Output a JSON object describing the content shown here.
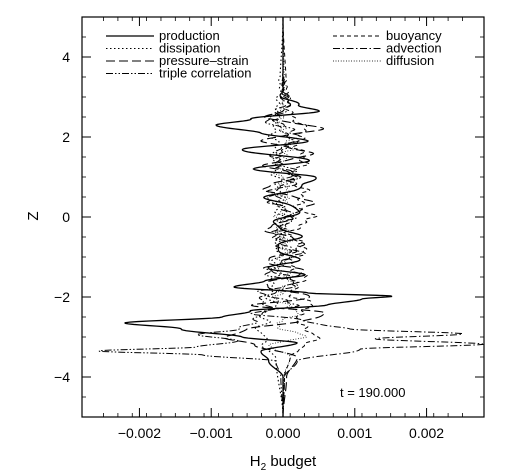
{
  "chart_data": {
    "type": "line",
    "xlabel": "H",
    "xlabel_sub": "2",
    "xlabel_rest": " budget",
    "ylabel": "Z",
    "xlim": [
      -0.0028,
      0.0028
    ],
    "ylim": [
      -5,
      5
    ],
    "x_ticks": [
      -0.002,
      -0.001,
      0.0,
      0.001,
      0.002
    ],
    "x_tick_labels": [
      "−0.002",
      "−0.001",
      "0.000",
      "0.001",
      "0.002"
    ],
    "y_ticks": [
      -4,
      -2,
      0,
      2,
      4
    ],
    "y_tick_labels": [
      "−4",
      "−2",
      "0",
      "2",
      "4"
    ],
    "annotation": "t = 190.000",
    "legend_placement": "top, inside plot (two columns)",
    "grid": false,
    "series": [
      {
        "name": "production",
        "style": "solid",
        "profile": [
          [
            -5,
            0
          ],
          [
            -4,
            0.0
          ],
          [
            -3.6,
            -0.0002
          ],
          [
            -3.35,
            -0.0003
          ],
          [
            -3.15,
            0.0002
          ],
          [
            -3.0,
            -0.0006
          ],
          [
            -2.8,
            -0.0014
          ],
          [
            -2.65,
            -0.0022
          ],
          [
            -2.5,
            -0.0009
          ],
          [
            -2.35,
            -0.0004
          ],
          [
            -2.2,
            0.0006
          ],
          [
            -2.05,
            0.0011
          ],
          [
            -1.98,
            0.0015
          ],
          [
            -1.9,
            0.0003
          ],
          [
            -1.75,
            -0.0006
          ],
          [
            -1.6,
            -0.0003
          ],
          [
            -1.45,
            0.0003
          ],
          [
            -1.3,
            -0.0002
          ],
          [
            -1.1,
            0.0002
          ],
          [
            -0.8,
            -0.0001
          ],
          [
            -0.5,
            0.0002
          ],
          [
            -0.2,
            -0.0001
          ],
          [
            0.2,
            0.0002
          ],
          [
            0.5,
            -0.0002
          ],
          [
            0.8,
            0.0003
          ],
          [
            1.0,
            0.0005
          ],
          [
            1.2,
            -0.0005
          ],
          [
            1.4,
            0.0004
          ],
          [
            1.7,
            -0.0006
          ],
          [
            1.9,
            0.0004
          ],
          [
            2.1,
            -0.0003
          ],
          [
            2.3,
            -0.001
          ],
          [
            2.45,
            -0.0004
          ],
          [
            2.65,
            0.0005
          ],
          [
            2.8,
            0.0002
          ],
          [
            3.0,
            0.0
          ],
          [
            5,
            0
          ]
        ]
      },
      {
        "name": "dissipation",
        "style": "dotted",
        "profile": [
          [
            -5,
            0
          ],
          [
            -3.5,
            -0.0001
          ],
          [
            -3.2,
            -0.0003
          ],
          [
            -3.0,
            -0.0002
          ],
          [
            -2.8,
            -0.0004
          ],
          [
            -2.6,
            -0.0002
          ],
          [
            -2.4,
            -0.0003
          ],
          [
            -2.2,
            -0.0001
          ],
          [
            -1.9,
            -0.0002
          ],
          [
            -1.5,
            -0.0001
          ],
          [
            -1.0,
            -8e-05
          ],
          [
            -0.5,
            -5e-05
          ],
          [
            0.0,
            -6e-05
          ],
          [
            0.5,
            -5e-05
          ],
          [
            1.0,
            -0.0001
          ],
          [
            1.5,
            -0.0001
          ],
          [
            2.0,
            -0.00012
          ],
          [
            2.5,
            -0.00015
          ],
          [
            3.0,
            -5e-05
          ],
          [
            5,
            0
          ]
        ]
      },
      {
        "name": "pressure–strain",
        "style": "longdash",
        "profile": [
          [
            -5,
            0
          ],
          [
            -4,
            5e-05
          ],
          [
            -3.5,
            0.0002
          ],
          [
            -3.2,
            -0.0004
          ],
          [
            -3.0,
            -0.0008
          ],
          [
            -2.8,
            -0.0005
          ],
          [
            -2.6,
            0.0003
          ],
          [
            -2.4,
            0.0006
          ],
          [
            -2.2,
            -0.0004
          ],
          [
            -2.0,
            0.0004
          ],
          [
            -1.7,
            -0.0003
          ],
          [
            -1.4,
            0.0003
          ],
          [
            -1.1,
            -0.0002
          ],
          [
            -0.7,
            0.0003
          ],
          [
            -0.3,
            -0.0002
          ],
          [
            0.1,
            0.0002
          ],
          [
            0.4,
            0.0004
          ],
          [
            0.7,
            -0.0003
          ],
          [
            1.0,
            0.0002
          ],
          [
            1.3,
            -0.0002
          ],
          [
            1.6,
            0.0004
          ],
          [
            1.9,
            -0.0003
          ],
          [
            2.2,
            0.0005
          ],
          [
            2.5,
            -0.0002
          ],
          [
            2.8,
            0.0001
          ],
          [
            3.2,
            0.0
          ],
          [
            5,
            0
          ]
        ]
      },
      {
        "name": "triple correlation",
        "style": "dashdotdot",
        "profile": [
          [
            -5,
            0
          ],
          [
            -4,
            -3e-05
          ],
          [
            -3.6,
            -0.0001
          ],
          [
            -3.45,
            -0.0011
          ],
          [
            -3.35,
            -0.0026
          ],
          [
            -3.25,
            -0.0012
          ],
          [
            -3.1,
            -0.0006
          ],
          [
            -2.95,
            -0.0012
          ],
          [
            -2.8,
            -0.0006
          ],
          [
            -2.6,
            -0.0004
          ],
          [
            -2.3,
            -0.0002
          ],
          [
            -2.0,
            -0.0003
          ],
          [
            -1.7,
            0.0002
          ],
          [
            -1.4,
            -0.0002
          ],
          [
            -1.0,
            0.0001
          ],
          [
            -0.5,
            -0.0001
          ],
          [
            0.0,
            0.0001
          ],
          [
            0.5,
            -0.0001
          ],
          [
            1.0,
            0.0002
          ],
          [
            1.5,
            -0.0001
          ],
          [
            2.0,
            0.0001
          ],
          [
            2.4,
            -0.0002
          ],
          [
            2.8,
            0.0001
          ],
          [
            3.2,
            0.0
          ],
          [
            5,
            0
          ]
        ]
      },
      {
        "name": "buoyancy",
        "style": "shortdash",
        "profile": [
          [
            -5,
            0
          ],
          [
            -4,
            2e-05
          ],
          [
            -3.5,
            0.0001
          ],
          [
            -3.2,
            0.0003
          ],
          [
            -3.0,
            0.0005
          ],
          [
            -2.8,
            0.0003
          ],
          [
            -2.5,
            0.0002
          ],
          [
            -2.2,
            0.0004
          ],
          [
            -1.9,
            0.0001
          ],
          [
            -1.5,
            0.0003
          ],
          [
            -1.2,
            0.0001
          ],
          [
            -0.8,
            0.0003
          ],
          [
            -0.4,
            0.0001
          ],
          [
            0.0,
            0.0004
          ],
          [
            0.3,
            0.0002
          ],
          [
            0.6,
            0.0003
          ],
          [
            1.0,
            0.0001
          ],
          [
            1.4,
            0.0003
          ],
          [
            1.8,
            0.0002
          ],
          [
            2.2,
            0.0003
          ],
          [
            2.6,
            0.0001
          ],
          [
            3.0,
            5e-05
          ],
          [
            5,
            0
          ]
        ]
      },
      {
        "name": "advection",
        "style": "dashdot",
        "profile": [
          [
            -5,
            0
          ],
          [
            -4,
            2e-05
          ],
          [
            -3.6,
            0.0002
          ],
          [
            -3.3,
            0.0011
          ],
          [
            -3.18,
            0.0028
          ],
          [
            -3.05,
            0.0013
          ],
          [
            -2.92,
            0.0025
          ],
          [
            -2.8,
            0.0009
          ],
          [
            -2.6,
            0.0003
          ],
          [
            -2.4,
            -0.0004
          ],
          [
            -2.2,
            0.0002
          ],
          [
            -1.9,
            -0.0003
          ],
          [
            -1.6,
            0.0002
          ],
          [
            -1.3,
            -0.0002
          ],
          [
            -0.9,
            0.0002
          ],
          [
            -0.5,
            -0.0001
          ],
          [
            0.0,
            0.0001
          ],
          [
            0.5,
            -0.0002
          ],
          [
            1.0,
            0.0001
          ],
          [
            1.5,
            -0.0001
          ],
          [
            2.0,
            0.0002
          ],
          [
            2.5,
            -0.0001
          ],
          [
            2.9,
            0.0
          ],
          [
            5,
            0
          ]
        ]
      },
      {
        "name": "diffusion",
        "style": "finedot",
        "profile": [
          [
            -5,
            0
          ],
          [
            -4,
            1e-05
          ],
          [
            -3.5,
            0.0001
          ],
          [
            -3.2,
            -0.0002
          ],
          [
            -3.0,
            0.0003
          ],
          [
            -2.7,
            -0.0001
          ],
          [
            -2.4,
            0.0002
          ],
          [
            -2.0,
            -0.0001
          ],
          [
            -1.6,
            0.0001
          ],
          [
            -1.2,
            -5e-05
          ],
          [
            -0.6,
            5e-05
          ],
          [
            0.0,
            -5e-05
          ],
          [
            0.6,
            5e-05
          ],
          [
            1.2,
            -5e-05
          ],
          [
            1.8,
            0.0001
          ],
          [
            2.4,
            -5e-05
          ],
          [
            3.0,
            2e-05
          ],
          [
            5,
            0
          ]
        ]
      }
    ]
  }
}
